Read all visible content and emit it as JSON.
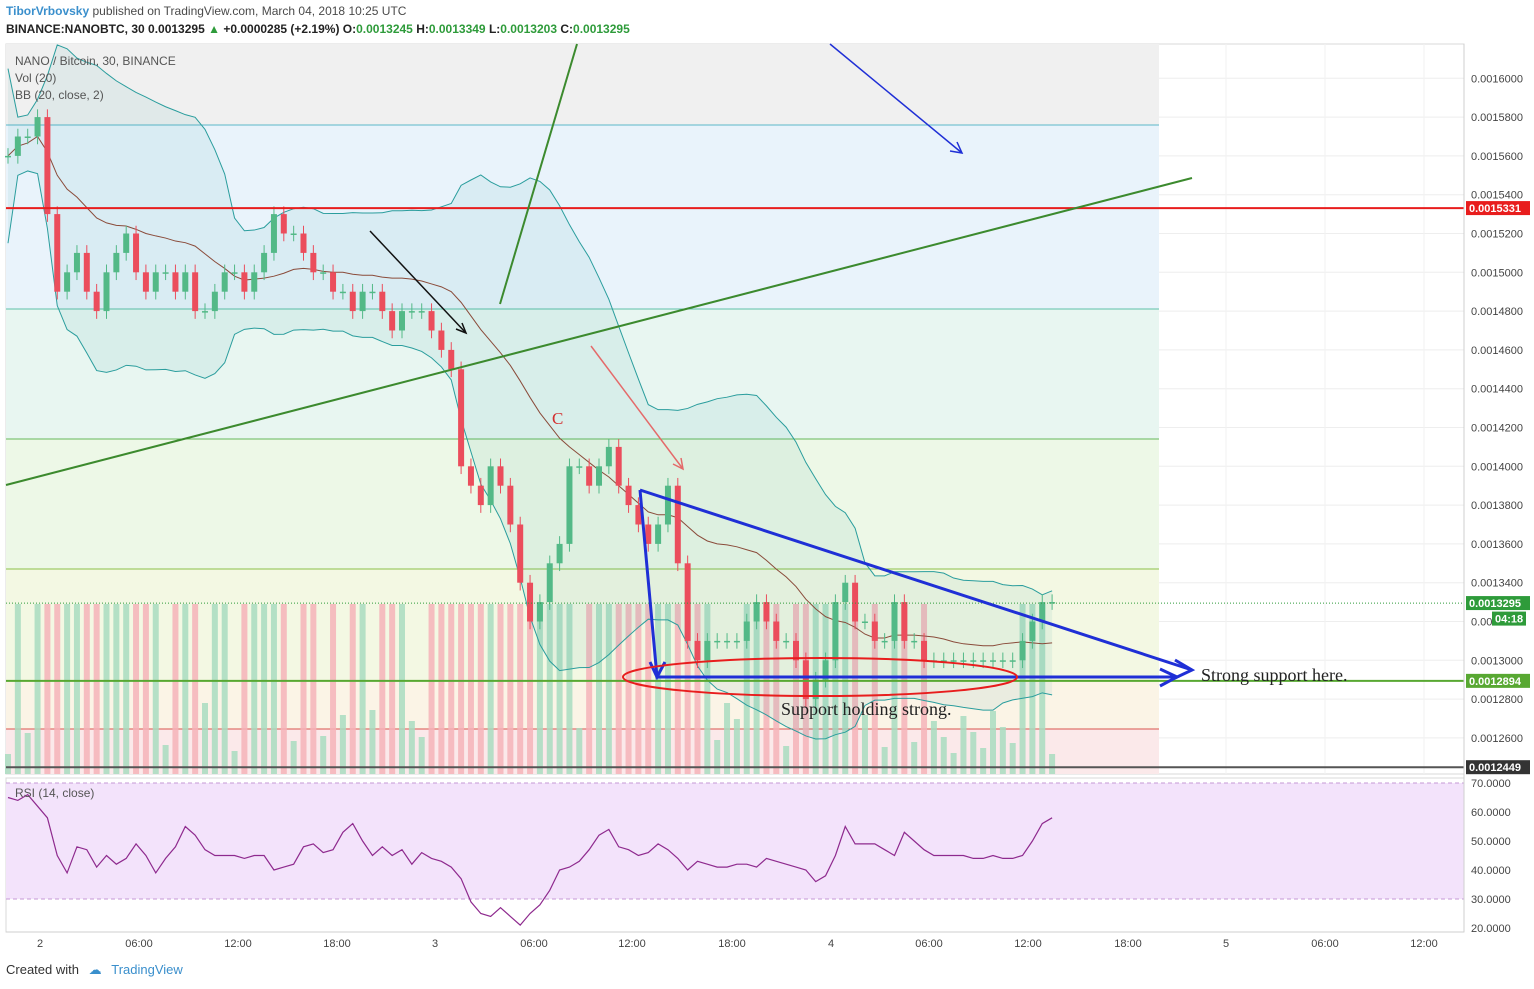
{
  "header": {
    "author": "TiborVrbovsky",
    "published": "published on TradingView.com, March 04, 2018 10:25 UTC",
    "symbol_line": "BINANCE:NANOBTC, 30",
    "last": "0.0013295",
    "change": "+0.0000285 (+2.19%)",
    "open_label": "O:",
    "open": "0.0013245",
    "high_label": "H:",
    "high": "0.0013349",
    "low_label": "L:",
    "low": "0.0013203",
    "close_label": "C:",
    "close": "0.0013295"
  },
  "legend": {
    "title": "NANO / Bitcoin, 30, BINANCE",
    "vol": "Vol (20)",
    "bb": "BB (20, close, 2)",
    "rsi": "RSI (14, close)"
  },
  "annotations": {
    "wave_label": "C",
    "support_note": "Strong support here.",
    "holding_note": "Support holding strong."
  },
  "footer": {
    "created": "Created with",
    "brand": "TradingView"
  },
  "colors": {
    "up": "#53b987",
    "down": "#eb4d5c",
    "bb": "#2a9d9d",
    "trend": "#3c8a2e",
    "blue_annot": "#1f2fd6",
    "red_line": "#e81d1d",
    "rsi": "#8e2a8e",
    "rsi_bg": "#f3e3fb"
  },
  "chart_data": {
    "type": "candlestick",
    "symbol": "NANO / Bitcoin",
    "interval": "30",
    "ylim": [
      0.00124,
      0.00162
    ],
    "y_ticks": [
      "0.0016000",
      "0.0015800",
      "0.0015600",
      "0.0015400",
      "0.0015200",
      "0.0015000",
      "0.0014800",
      "0.0014600",
      "0.0014400",
      "0.0014200",
      "0.0014000",
      "0.0013800",
      "0.0013600",
      "0.0013400",
      "0.0013200",
      "0.0013000",
      "0.0012800",
      "0.0012600"
    ],
    "y_tick_values": [
      0.0016,
      0.00158,
      0.00156,
      0.00154,
      0.00152,
      0.0015,
      0.00148,
      0.00146,
      0.00144,
      0.00142,
      0.0014,
      0.00138,
      0.00136,
      0.00134,
      0.00132,
      0.0013,
      0.00128,
      0.00126
    ],
    "x_ticks": [
      "2",
      "06:00",
      "12:00",
      "18:00",
      "3",
      "06:00",
      "12:00",
      "18:00",
      "4",
      "06:00",
      "12:00",
      "18:00",
      "5",
      "06:00",
      "12:00"
    ],
    "price_tags": [
      {
        "label": "0.0015331",
        "value": 0.0015331,
        "color": "#e81d1d"
      },
      {
        "label": "0.0013295",
        "value": 0.0013295,
        "color": "#2e9b3a"
      },
      {
        "label": "04:18",
        "value": 0.0013215,
        "color": "#2e9b3a"
      },
      {
        "label": "0.0012894",
        "value": 0.0012894,
        "color": "#58a832"
      },
      {
        "label": "0.0012449",
        "value": 0.0012449,
        "color": "#333333"
      }
    ],
    "horizontal_levels": [
      0.0015331,
      0.0012894
    ],
    "closes": [
      0.00156,
      0.00157,
      0.00157,
      0.00158,
      0.00153,
      0.00149,
      0.0015,
      0.00151,
      0.00149,
      0.00148,
      0.0015,
      0.00151,
      0.00152,
      0.0015,
      0.00149,
      0.0015,
      0.0015,
      0.00149,
      0.0015,
      0.00148,
      0.00148,
      0.00149,
      0.0015,
      0.0015,
      0.00149,
      0.0015,
      0.00151,
      0.00153,
      0.00152,
      0.00152,
      0.00151,
      0.0015,
      0.0015,
      0.00149,
      0.00149,
      0.00148,
      0.00149,
      0.00149,
      0.00148,
      0.00147,
      0.00148,
      0.00148,
      0.00148,
      0.00147,
      0.00146,
      0.00145,
      0.0014,
      0.00139,
      0.00138,
      0.0014,
      0.00139,
      0.00137,
      0.00134,
      0.00132,
      0.00133,
      0.00135,
      0.00136,
      0.0014,
      0.0014,
      0.00139,
      0.0014,
      0.00141,
      0.00139,
      0.00138,
      0.00137,
      0.00136,
      0.00137,
      0.00139,
      0.00135,
      0.00131,
      0.0013,
      0.00131,
      0.00131,
      0.00131,
      0.00131,
      0.00132,
      0.00133,
      0.00132,
      0.00131,
      0.00131,
      0.0013,
      0.00128,
      0.00129,
      0.0013,
      0.00133,
      0.00134,
      0.00132,
      0.00132,
      0.00131,
      0.00131,
      0.00133,
      0.00131,
      0.00131,
      0.0013,
      0.0013,
      0.0013,
      0.0013,
      0.0013,
      0.0013,
      0.0013,
      0.0013,
      0.0013,
      0.0013,
      0.00131,
      0.00132,
      0.00133,
      0.00133
    ],
    "rsi": {
      "ylim": [
        20,
        70
      ],
      "y_ticks": [
        "70.0000",
        "60.0000",
        "50.0000",
        "40.0000",
        "30.0000",
        "20.0000"
      ],
      "y_tick_values": [
        70,
        60,
        50,
        40,
        30,
        20
      ],
      "bands": [
        70,
        30
      ],
      "values": [
        65,
        64,
        66,
        62,
        58,
        45,
        39,
        48,
        47,
        41,
        45,
        42,
        44,
        49,
        45,
        39,
        44,
        48,
        55,
        52,
        47,
        45,
        45,
        45,
        44,
        45,
        45,
        40,
        41,
        42,
        48,
        49,
        46,
        47,
        53,
        56,
        50,
        45,
        48,
        45,
        47,
        42,
        46,
        44,
        43,
        41,
        37,
        29,
        25,
        24,
        27,
        24,
        21,
        25,
        28,
        33,
        40,
        41,
        43,
        47,
        52,
        54,
        48,
        47,
        45,
        46,
        49,
        47,
        44,
        40,
        43,
        42,
        41,
        41,
        42,
        42,
        41,
        44,
        43,
        42,
        41,
        40,
        36,
        38,
        45,
        55,
        49,
        49,
        49,
        47,
        45,
        53,
        50,
        47,
        45,
        45,
        45,
        45,
        44,
        44,
        45,
        44,
        44,
        45,
        50,
        56,
        58
      ]
    }
  }
}
